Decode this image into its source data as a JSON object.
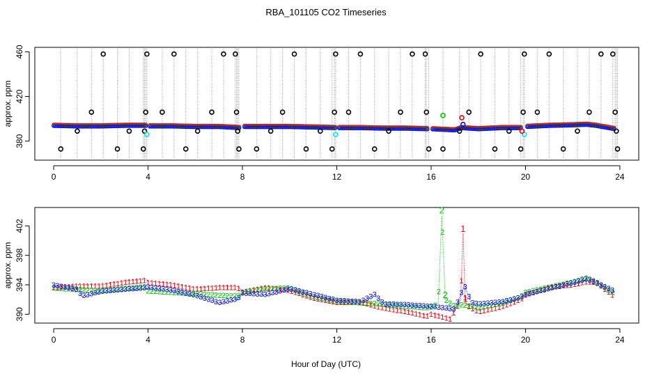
{
  "figure": {
    "title": "RBA_101105  CO2 Timeseries",
    "xlabel": "Hour of Day (UTC)"
  },
  "chart_data": [
    {
      "type": "scatter",
      "panel": "top",
      "ylabel": "approx. ppm",
      "xlim": [
        -0.8,
        24.8
      ],
      "ylim": [
        363,
        464
      ],
      "xticks": [
        0,
        4,
        8,
        12,
        16,
        20,
        24
      ],
      "yticks": [
        380,
        420,
        460
      ],
      "series_colors": {
        "black": "#000000",
        "red": "#e8000b",
        "green": "#00c000",
        "blue": "#0000ff",
        "cyan": "#00e5ee",
        "spike": "#999999"
      },
      "baseline": [
        [
          0,
          394
        ],
        [
          1,
          393.5
        ],
        [
          2,
          393.5
        ],
        [
          3,
          394
        ],
        [
          3.9,
          394
        ],
        [
          4,
          393.5
        ],
        [
          5,
          393.5
        ],
        [
          6,
          393
        ],
        [
          7,
          393
        ],
        [
          7.9,
          392
        ],
        [
          8,
          393
        ],
        [
          9,
          393
        ],
        [
          10,
          393
        ],
        [
          11,
          392.5
        ],
        [
          12,
          392
        ],
        [
          13,
          392
        ],
        [
          14,
          391.5
        ],
        [
          15,
          391.5
        ],
        [
          15.8,
          391
        ],
        [
          16,
          391
        ],
        [
          17,
          390
        ],
        [
          17.3,
          392
        ],
        [
          18,
          391
        ],
        [
          19,
          392
        ],
        [
          19.8,
          392
        ],
        [
          20,
          393
        ],
        [
          21,
          394
        ],
        [
          22,
          394.5
        ],
        [
          22.6,
          395
        ],
        [
          23,
          394
        ],
        [
          23.8,
          391
        ]
      ],
      "black_outliers": [
        [
          0.3,
          373
        ],
        [
          1.0,
          389
        ],
        [
          1.6,
          406
        ],
        [
          2.1,
          458
        ],
        [
          2.7,
          373
        ],
        [
          3.2,
          389
        ],
        [
          3.8,
          373
        ],
        [
          3.85,
          389
        ],
        [
          3.9,
          406
        ],
        [
          3.95,
          458
        ],
        [
          4.6,
          406
        ],
        [
          5.1,
          458
        ],
        [
          5.6,
          373
        ],
        [
          6.1,
          389
        ],
        [
          6.7,
          406
        ],
        [
          7.2,
          458
        ],
        [
          7.7,
          458
        ],
        [
          7.75,
          406
        ],
        [
          7.8,
          389
        ],
        [
          7.85,
          373
        ],
        [
          8.6,
          373
        ],
        [
          9.2,
          389
        ],
        [
          9.7,
          406
        ],
        [
          10.2,
          458
        ],
        [
          10.7,
          373
        ],
        [
          11.3,
          389
        ],
        [
          11.8,
          373
        ],
        [
          11.9,
          406
        ],
        [
          11.95,
          458
        ],
        [
          12.5,
          406
        ],
        [
          13.0,
          458
        ],
        [
          13.6,
          373
        ],
        [
          14.2,
          389
        ],
        [
          14.7,
          406
        ],
        [
          15.2,
          458
        ],
        [
          15.75,
          458
        ],
        [
          15.8,
          406
        ],
        [
          15.9,
          373
        ],
        [
          16.5,
          373
        ],
        [
          17.2,
          389
        ],
        [
          17.6,
          406
        ],
        [
          18.1,
          458
        ],
        [
          18.7,
          373
        ],
        [
          19.3,
          389
        ],
        [
          19.8,
          373
        ],
        [
          19.9,
          406
        ],
        [
          19.95,
          458
        ],
        [
          20.5,
          406
        ],
        [
          21.0,
          458
        ],
        [
          21.6,
          373
        ],
        [
          22.2,
          389
        ],
        [
          22.7,
          406
        ],
        [
          23.2,
          458
        ],
        [
          23.7,
          458
        ],
        [
          23.8,
          406
        ],
        [
          23.85,
          389
        ],
        [
          23.9,
          373
        ]
      ],
      "colored_outliers": [
        {
          "series": "cyan",
          "x": 3.95,
          "y": 386
        },
        {
          "series": "green",
          "x": 16.5,
          "y": 403
        },
        {
          "series": "red",
          "x": 17.3,
          "y": 401
        },
        {
          "series": "blue",
          "x": 17.35,
          "y": 395
        },
        {
          "series": "cyan",
          "x": 11.95,
          "y": 386
        },
        {
          "series": "cyan",
          "x": 19.95,
          "y": 386
        },
        {
          "series": "red",
          "x": 19.85,
          "y": 389
        }
      ]
    },
    {
      "type": "scatter",
      "panel": "bottom",
      "ylabel": "approx. ppm",
      "xlim": [
        -0.8,
        24.8
      ],
      "ylim": [
        388.8,
        404.5
      ],
      "xticks": [
        0,
        4,
        8,
        12,
        16,
        20,
        24
      ],
      "yticks": [
        390,
        394,
        398,
        402
      ],
      "series": [
        {
          "name": "1",
          "symbol": "1",
          "color": "#e8000b",
          "points": [
            [
              0,
              393.8
            ],
            [
              1,
              394
            ],
            [
              2,
              394
            ],
            [
              3,
              394.5
            ],
            [
              3.9,
              394.8
            ],
            [
              4,
              394.5
            ],
            [
              5,
              394.2
            ],
            [
              6,
              393.6
            ],
            [
              7,
              393.8
            ],
            [
              7.8,
              393.8
            ],
            [
              8,
              393.2
            ],
            [
              9,
              393.8
            ],
            [
              10,
              393.4
            ],
            [
              11,
              392.4
            ],
            [
              12,
              391.8
            ],
            [
              13,
              391.8
            ],
            [
              14,
              391
            ],
            [
              15,
              390.5
            ],
            [
              15.8,
              389.9
            ],
            [
              16,
              390.2
            ],
            [
              16.8,
              389.5
            ],
            [
              17.25,
              392
            ],
            [
              17.35,
              401
            ],
            [
              17.45,
              391.5
            ],
            [
              18,
              390.5
            ],
            [
              19,
              391.2
            ],
            [
              19.8,
              392.2
            ],
            [
              20,
              392.8
            ],
            [
              21,
              393.8
            ],
            [
              22,
              394.2
            ],
            [
              22.6,
              394.6
            ],
            [
              23,
              394.5
            ],
            [
              23.8,
              392.5
            ]
          ]
        },
        {
          "name": "2",
          "symbol": "2",
          "color": "#00c000",
          "points": [
            [
              0,
              393.6
            ],
            [
              1,
              393.4
            ],
            [
              2,
              393.2
            ],
            [
              3,
              393.5
            ],
            [
              3.9,
              393.8
            ],
            [
              4,
              393.2
            ],
            [
              5,
              393
            ],
            [
              6,
              392.8
            ],
            [
              7,
              392.6
            ],
            [
              7.8,
              392.5
            ],
            [
              8,
              393
            ],
            [
              9,
              393.5
            ],
            [
              10,
              393.6
            ],
            [
              11,
              392.4
            ],
            [
              12,
              391.8
            ],
            [
              13,
              391.6
            ],
            [
              14,
              391.4
            ],
            [
              15,
              391.1
            ],
            [
              15.8,
              390.9
            ],
            [
              16,
              391
            ],
            [
              16.3,
              391.5
            ],
            [
              16.45,
              403.5
            ],
            [
              16.6,
              392
            ],
            [
              17,
              391.1
            ],
            [
              17.3,
              391.3
            ],
            [
              18,
              391
            ],
            [
              19,
              391.5
            ],
            [
              19.8,
              392.4
            ],
            [
              20,
              393
            ],
            [
              21,
              393.7
            ],
            [
              22,
              394.4
            ],
            [
              22.6,
              395
            ],
            [
              23,
              394.4
            ],
            [
              23.8,
              392.8
            ]
          ]
        },
        {
          "name": "3",
          "symbol": "3",
          "color": "#0000ff",
          "points": [
            [
              0,
              393.9
            ],
            [
              1,
              393.3
            ],
            [
              1.2,
              392.4
            ],
            [
              2,
              393
            ],
            [
              3,
              393.3
            ],
            [
              3.9,
              393.5
            ],
            [
              4,
              393.6
            ],
            [
              5,
              393.2
            ],
            [
              6,
              392.5
            ],
            [
              7,
              391.5
            ],
            [
              7.8,
              392
            ],
            [
              8,
              392.8
            ],
            [
              9,
              392.6
            ],
            [
              10,
              393.4
            ],
            [
              11,
              392.6
            ],
            [
              12,
              391.8
            ],
            [
              13,
              391.6
            ],
            [
              13.6,
              392.6
            ],
            [
              14,
              391.3
            ],
            [
              15,
              391.2
            ],
            [
              15.8,
              391
            ],
            [
              16,
              391
            ],
            [
              17,
              390.6
            ],
            [
              17.3,
              393
            ],
            [
              17.4,
              394
            ],
            [
              17.7,
              391.5
            ],
            [
              18,
              391.3
            ],
            [
              19,
              391.6
            ],
            [
              19.8,
              392.2
            ],
            [
              20,
              392.6
            ],
            [
              21,
              393.4
            ],
            [
              22,
              394.2
            ],
            [
              22.6,
              394.7
            ],
            [
              23,
              394.2
            ],
            [
              23.8,
              393
            ]
          ]
        }
      ]
    }
  ]
}
